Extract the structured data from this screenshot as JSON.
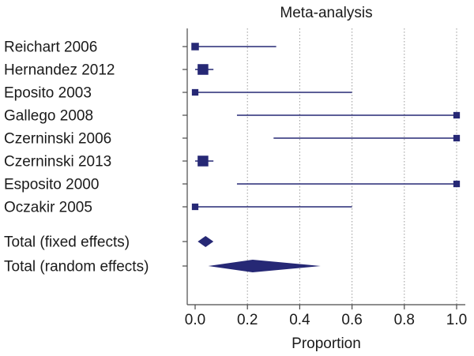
{
  "chart_data": {
    "type": "forest",
    "title": "Meta-analysis",
    "xlabel": "Proportion",
    "xlim": [
      0.0,
      1.0
    ],
    "xticks": [
      "0.0",
      "0.2",
      "0.4",
      "0.6",
      "0.8",
      "1.0"
    ],
    "grid": true,
    "studies": [
      {
        "label": "Reichart 2006",
        "estimate": 0.0,
        "ci": [
          0.0,
          0.31
        ],
        "weight": 1
      },
      {
        "label": "Hernandez 2012",
        "estimate": 0.03,
        "ci": [
          0.0,
          0.07
        ],
        "weight": 3
      },
      {
        "label": "Eposito 2003",
        "estimate": 0.0,
        "ci": [
          0.0,
          0.6
        ],
        "weight": 0.6
      },
      {
        "label": "Gallego 2008",
        "estimate": 1.0,
        "ci": [
          0.16,
          1.0
        ],
        "weight": 0.6
      },
      {
        "label": "Czerninski 2006",
        "estimate": 1.0,
        "ci": [
          0.3,
          1.0
        ],
        "weight": 0.6
      },
      {
        "label": "Czerninski 2013",
        "estimate": 0.03,
        "ci": [
          0.0,
          0.07
        ],
        "weight": 3
      },
      {
        "label": "Esposito 2000",
        "estimate": 1.0,
        "ci": [
          0.16,
          1.0
        ],
        "weight": 0.6
      },
      {
        "label": "Oczakir 2005",
        "estimate": 0.0,
        "ci": [
          0.0,
          0.6
        ],
        "weight": 0.6
      }
    ],
    "pooled": [
      {
        "label": "Total (fixed effects)",
        "estimate": 0.04,
        "ci": [
          0.01,
          0.07
        ]
      },
      {
        "label": "Total (random effects)",
        "estimate": 0.22,
        "ci": [
          0.05,
          0.48
        ]
      }
    ],
    "colors": {
      "mark": "#262875",
      "axis": "#4a4a4a",
      "grid": "#9a9a9a",
      "text": "#1a1a1a"
    }
  }
}
